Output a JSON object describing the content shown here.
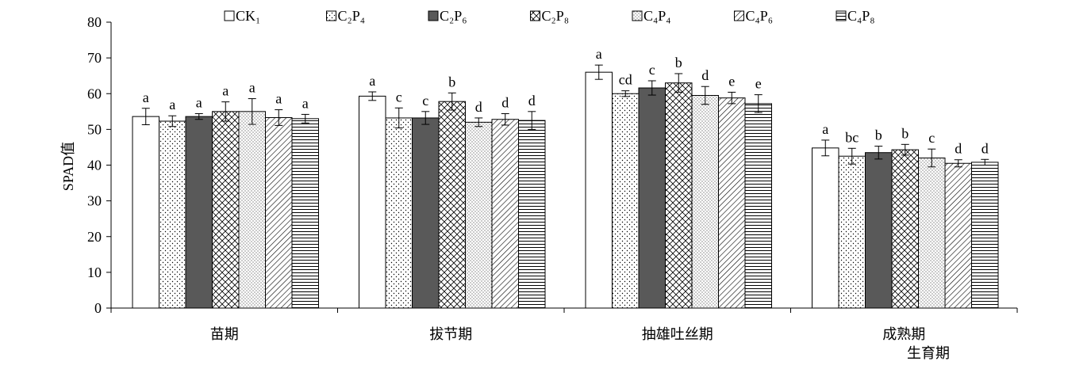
{
  "chart_data": {
    "type": "bar",
    "ylabel": "SPAD值",
    "xlabel": "生育期",
    "ylim": [
      0,
      80
    ],
    "yticks": [
      0,
      10,
      20,
      30,
      40,
      50,
      60,
      70,
      80
    ],
    "grid": false,
    "legend_position": "top",
    "categories": [
      "苗期",
      "拔节期",
      "抽雄吐丝期",
      "成熟期"
    ],
    "series": [
      {
        "name": "CK₁",
        "values": [
          53.6,
          59.3,
          66.0,
          44.8
        ],
        "errors": [
          2.3,
          1.2,
          2.0,
          2.2
        ],
        "letters": [
          "a",
          "a",
          "a",
          "a"
        ],
        "pattern": "white"
      },
      {
        "name": "C₂P₄",
        "values": [
          52.3,
          53.2,
          60.0,
          42.5
        ],
        "errors": [
          1.5,
          2.8,
          0.8,
          2.2
        ],
        "letters": [
          "a",
          "c",
          "cd",
          "bc"
        ],
        "pattern": "dots"
      },
      {
        "name": "C₂P₆",
        "values": [
          53.6,
          53.2,
          61.6,
          43.5
        ],
        "errors": [
          0.8,
          1.8,
          2.0,
          1.8
        ],
        "letters": [
          "a",
          "c",
          "c",
          "b"
        ],
        "pattern": "darkgray"
      },
      {
        "name": "C₂P₈",
        "values": [
          55.0,
          57.8,
          63.0,
          44.3
        ],
        "errors": [
          2.7,
          2.4,
          2.6,
          1.5
        ],
        "letters": [
          "a",
          "b",
          "b",
          "b"
        ],
        "pattern": "crosshatch"
      },
      {
        "name": "C₄P₄",
        "values": [
          55.0,
          52.0,
          59.5,
          42.0
        ],
        "errors": [
          3.6,
          1.2,
          2.5,
          2.5
        ],
        "letters": [
          "a",
          "d",
          "d",
          "c"
        ],
        "pattern": "finedots"
      },
      {
        "name": "C₄P₆",
        "values": [
          53.3,
          52.8,
          58.8,
          40.5
        ],
        "errors": [
          2.2,
          1.6,
          1.6,
          1.0
        ],
        "letters": [
          "a",
          "d",
          "e",
          "d"
        ],
        "pattern": "diagonal"
      },
      {
        "name": "C₄P₈",
        "values": [
          53.0,
          52.5,
          57.2,
          40.8
        ],
        "errors": [
          1.2,
          2.5,
          2.5,
          0.8
        ],
        "letters": [
          "a",
          "d",
          "e",
          "d"
        ],
        "pattern": "horizontal"
      }
    ]
  }
}
